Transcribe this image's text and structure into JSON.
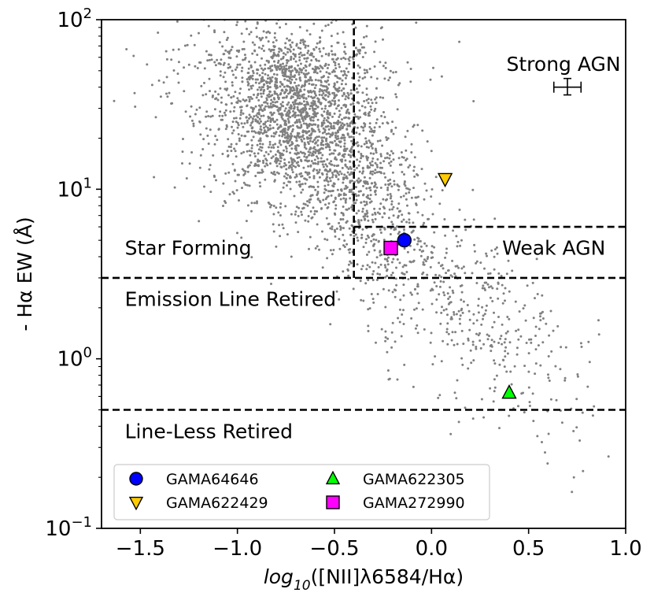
{
  "chart_data": {
    "type": "scatter",
    "x_axis": {
      "label_prefix": "log",
      "label_sub": "10",
      "label_rest": "([NII]λ6584/Hα)",
      "range": [
        -1.7,
        1.0
      ],
      "ticks": [
        -1.5,
        -1.0,
        -0.5,
        0.0,
        0.5,
        1.0
      ],
      "tick_labels": [
        "−1.5",
        "−1.0",
        "−0.5",
        "0.0",
        "0.5",
        "1.0"
      ]
    },
    "y_axis": {
      "label": "- Hα EW (Å)",
      "scale": "log",
      "range": [
        0.1,
        100
      ],
      "tick_values": [
        0.1,
        1,
        10,
        100
      ],
      "tick_bases": [
        "10",
        "10",
        "10",
        "10"
      ],
      "tick_exps": [
        "−1",
        "0",
        "1",
        "2"
      ]
    },
    "dividers": [
      {
        "orientation": "vertical",
        "x": -0.4,
        "y_from": 3,
        "y_to": 100
      },
      {
        "orientation": "horizontal",
        "y": 6,
        "x_from": -0.4,
        "x_to": 1.0
      },
      {
        "orientation": "horizontal",
        "y": 3,
        "x_from": -1.7,
        "x_to": 1.0
      },
      {
        "orientation": "horizontal",
        "y": 0.5,
        "x_from": -1.7,
        "x_to": 1.0
      }
    ],
    "regions": [
      {
        "name": "Strong AGN",
        "x": 0.68,
        "y": 50,
        "anchor": "middle"
      },
      {
        "name": "Weak AGN",
        "x": 0.63,
        "y": 4.1,
        "anchor": "middle"
      },
      {
        "name": "Star Forming",
        "x": -1.58,
        "y": 4.1,
        "anchor": "start"
      },
      {
        "name": "Emission Line Retired",
        "x": -1.58,
        "y": 2.05,
        "anchor": "start"
      },
      {
        "name": "Line-Less Retired",
        "x": -1.58,
        "y": 0.34,
        "anchor": "start"
      }
    ],
    "background_sample": {
      "description": "gray points",
      "color": "#808080",
      "clusters": [
        {
          "cx": -0.7,
          "cy": 28,
          "sx": 0.22,
          "sy_dex": 0.25,
          "n": 1800
        },
        {
          "cx": -0.45,
          "cy": 12,
          "sx": 0.18,
          "sy_dex": 0.2,
          "n": 500
        },
        {
          "cx": -0.25,
          "cy": 5.5,
          "sx": 0.15,
          "sy_dex": 0.2,
          "n": 250
        },
        {
          "cx": 0.05,
          "cy": 2.5,
          "sx": 0.2,
          "sy_dex": 0.22,
          "n": 250
        },
        {
          "cx": 0.4,
          "cy": 1.0,
          "sx": 0.18,
          "sy_dex": 0.25,
          "n": 150
        },
        {
          "cx": 0.7,
          "cy": 0.55,
          "sx": 0.12,
          "sy_dex": 0.25,
          "n": 30
        },
        {
          "cx": -0.9,
          "cy": 60,
          "sx": 0.35,
          "sy_dex": 0.15,
          "n": 200
        }
      ]
    },
    "series": [
      {
        "name": "GAMA64646",
        "x": -0.14,
        "y": 5.0,
        "marker": "circle",
        "color": "#0000ff"
      },
      {
        "name": "GAMA622429",
        "x": 0.07,
        "y": 11.5,
        "marker": "triangle-down",
        "color": "#ffcc00"
      },
      {
        "name": "GAMA622305",
        "x": 0.4,
        "y": 0.63,
        "marker": "triangle-up",
        "color": "#00ff00"
      },
      {
        "name": "GAMA272990",
        "x": -0.21,
        "y": 4.5,
        "marker": "square",
        "color": "#ff00ff"
      }
    ],
    "error_bar": {
      "x": 0.7,
      "y": 40,
      "xerr": 0.07,
      "y_low": 36,
      "y_high": 45
    },
    "legend": {
      "position": "lower-left",
      "columns": 2
    }
  }
}
